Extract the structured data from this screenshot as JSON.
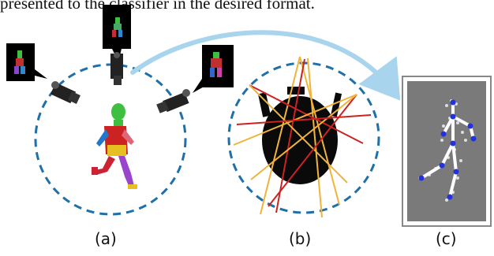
{
  "caption_top": "presented to the classifier in the desired format.",
  "labels": {
    "a": "(a)",
    "b": "(b)",
    "c": "(c)"
  },
  "colors": {
    "dashed_circle": "#1f6fa8",
    "arrow": "#a8d4ee",
    "ray_red": "#cc2222",
    "ray_yellow": "#f0b43a",
    "blob": "#0a0a0a",
    "panel_c_bg": "#7a7a7a"
  }
}
